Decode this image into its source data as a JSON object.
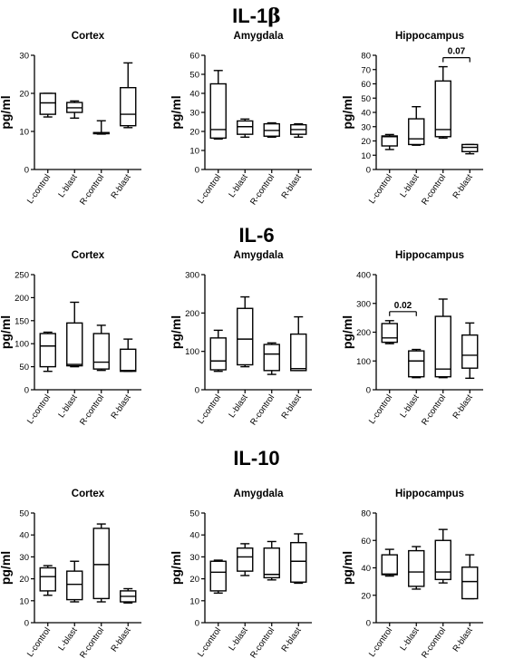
{
  "figure_sections": [
    {
      "title": "IL-1",
      "title_suffix": "β"
    },
    {
      "title": "IL-6",
      "title_suffix": ""
    },
    {
      "title": "IL-10",
      "title_suffix": ""
    }
  ],
  "chart_data": [
    {
      "type": "box",
      "section": 0,
      "title": "Cortex",
      "ylabel": "pg/ml",
      "categories": [
        "L-control",
        "L-blast",
        "R-control",
        "R-blast"
      ],
      "yticks": [
        0,
        10,
        20,
        30
      ],
      "ylim": [
        0,
        30
      ],
      "boxes": [
        {
          "min": 13.8,
          "q1": 14.5,
          "median": 17.5,
          "q3": 20.0,
          "max": 20.0
        },
        {
          "min": 13.5,
          "q1": 15.0,
          "median": 16.2,
          "q3": 17.6,
          "max": 18.0
        },
        {
          "min": 9.3,
          "q1": 9.4,
          "median": 9.5,
          "q3": 9.7,
          "max": 12.8
        },
        {
          "min": 11.0,
          "q1": 11.5,
          "median": 14.5,
          "q3": 21.5,
          "max": 28.0
        }
      ],
      "annotations": []
    },
    {
      "type": "box",
      "section": 0,
      "title": "Amygdala",
      "ylabel": "pg/ml",
      "categories": [
        "L-control",
        "L-blast",
        "R-control",
        "R-blast"
      ],
      "yticks": [
        0,
        10,
        20,
        30,
        40,
        50,
        60
      ],
      "ylim": [
        0,
        60
      ],
      "boxes": [
        {
          "min": 16.0,
          "q1": 16.5,
          "median": 21.0,
          "q3": 45.0,
          "max": 52.0
        },
        {
          "min": 17.0,
          "q1": 18.5,
          "median": 22.5,
          "q3": 25.5,
          "max": 26.5
        },
        {
          "min": 17.0,
          "q1": 17.5,
          "median": 20.5,
          "q3": 24.0,
          "max": 24.5
        },
        {
          "min": 17.0,
          "q1": 18.5,
          "median": 21.0,
          "q3": 23.5,
          "max": 24.0
        }
      ],
      "annotations": []
    },
    {
      "type": "box",
      "section": 0,
      "title": "Hippocampus",
      "ylabel": "pg/ml",
      "categories": [
        "L-control",
        "L-blast",
        "R-control",
        "R-blast"
      ],
      "yticks": [
        0,
        10,
        20,
        30,
        40,
        50,
        60,
        70,
        80
      ],
      "ylim": [
        0,
        80
      ],
      "boxes": [
        {
          "min": 14.0,
          "q1": 16.5,
          "median": 23.0,
          "q3": 23.5,
          "max": 24.5
        },
        {
          "min": 17.0,
          "q1": 17.5,
          "median": 21.5,
          "q3": 35.5,
          "max": 44.0
        },
        {
          "min": 22.0,
          "q1": 23.0,
          "median": 28.0,
          "q3": 62.0,
          "max": 72.0
        },
        {
          "min": 11.0,
          "q1": 12.5,
          "median": 15.5,
          "q3": 17.5,
          "max": 17.5
        }
      ],
      "annotations": [
        {
          "from": 2,
          "to": 3,
          "label": "0.07"
        }
      ]
    },
    {
      "type": "box",
      "section": 1,
      "title": "Cortex",
      "ylabel": "pg/ml",
      "categories": [
        "L-control",
        "L-blast",
        "R-control",
        "R-blast"
      ],
      "yticks": [
        0,
        50,
        100,
        150,
        200,
        250
      ],
      "ylim": [
        0,
        250
      ],
      "boxes": [
        {
          "min": 40,
          "q1": 50,
          "median": 95,
          "q3": 122,
          "max": 125
        },
        {
          "min": 50,
          "q1": 52,
          "median": 55,
          "q3": 145,
          "max": 190
        },
        {
          "min": 42,
          "q1": 45,
          "median": 60,
          "q3": 122,
          "max": 140
        },
        {
          "min": 40,
          "q1": 40,
          "median": 42,
          "q3": 88,
          "max": 110
        }
      ],
      "annotations": []
    },
    {
      "type": "box",
      "section": 1,
      "title": "Amygdala",
      "ylabel": "pg/ml",
      "categories": [
        "L-control",
        "L-blast",
        "R-control",
        "R-blast"
      ],
      "yticks": [
        0,
        100,
        200,
        300
      ],
      "ylim": [
        0,
        300
      ],
      "boxes": [
        {
          "min": 48,
          "q1": 52,
          "median": 75,
          "q3": 135,
          "max": 155
        },
        {
          "min": 60,
          "q1": 65,
          "median": 132,
          "q3": 212,
          "max": 242
        },
        {
          "min": 40,
          "q1": 50,
          "median": 93,
          "q3": 118,
          "max": 122
        },
        {
          "min": 50,
          "q1": 50,
          "median": 55,
          "q3": 145,
          "max": 190
        }
      ],
      "annotations": []
    },
    {
      "type": "box",
      "section": 1,
      "title": "Hippocampus",
      "ylabel": "pg/ml",
      "categories": [
        "L-control",
        "L-blast",
        "R-control",
        "R-blast"
      ],
      "yticks": [
        0,
        100,
        200,
        300,
        400
      ],
      "ylim": [
        0,
        400
      ],
      "boxes": [
        {
          "min": 160,
          "q1": 165,
          "median": 180,
          "q3": 230,
          "max": 240
        },
        {
          "min": 42,
          "q1": 45,
          "median": 100,
          "q3": 135,
          "max": 140
        },
        {
          "min": 42,
          "q1": 45,
          "median": 72,
          "q3": 255,
          "max": 315
        },
        {
          "min": 40,
          "q1": 75,
          "median": 120,
          "q3": 190,
          "max": 232
        }
      ],
      "annotations": [
        {
          "from": 0,
          "to": 1,
          "label": "0.02"
        }
      ]
    },
    {
      "type": "box",
      "section": 2,
      "title": "Cortex",
      "ylabel": "pg/ml",
      "categories": [
        "L-control",
        "L-blast",
        "R-control",
        "R-blast"
      ],
      "yticks": [
        0,
        10,
        20,
        30,
        40,
        50
      ],
      "ylim": [
        0,
        50
      ],
      "boxes": [
        {
          "min": 12.5,
          "q1": 14.5,
          "median": 21.0,
          "q3": 25.0,
          "max": 26.0
        },
        {
          "min": 9.5,
          "q1": 10.5,
          "median": 17.5,
          "q3": 23.5,
          "max": 28.0
        },
        {
          "min": 9.5,
          "q1": 11.0,
          "median": 26.5,
          "q3": 43.0,
          "max": 45.0
        },
        {
          "min": 9.0,
          "q1": 9.5,
          "median": 12.0,
          "q3": 14.5,
          "max": 15.5
        }
      ],
      "annotations": []
    },
    {
      "type": "box",
      "section": 2,
      "title": "Amygdala",
      "ylabel": "pg/ml",
      "categories": [
        "L-control",
        "L-blast",
        "R-control",
        "R-blast"
      ],
      "yticks": [
        0,
        10,
        20,
        30,
        40,
        50
      ],
      "ylim": [
        0,
        50
      ],
      "boxes": [
        {
          "min": 13.5,
          "q1": 14.5,
          "median": 23.0,
          "q3": 28.0,
          "max": 28.5
        },
        {
          "min": 21.5,
          "q1": 23.5,
          "median": 30.0,
          "q3": 34.0,
          "max": 36.0
        },
        {
          "min": 19.5,
          "q1": 20.5,
          "median": 22.0,
          "q3": 34.0,
          "max": 37.0
        },
        {
          "min": 18.0,
          "q1": 18.5,
          "median": 28.0,
          "q3": 36.5,
          "max": 40.5
        }
      ],
      "annotations": []
    },
    {
      "type": "box",
      "section": 2,
      "title": "Hippocampus",
      "ylabel": "pg/ml",
      "categories": [
        "L-control",
        "L-blast",
        "R-control",
        "R-blast"
      ],
      "yticks": [
        0,
        20,
        40,
        60,
        80
      ],
      "ylim": [
        0,
        80
      ],
      "boxes": [
        {
          "min": 34.0,
          "q1": 35.0,
          "median": 35.5,
          "q3": 49.5,
          "max": 53.5
        },
        {
          "min": 24.5,
          "q1": 26.5,
          "median": 37.0,
          "q3": 52.5,
          "max": 55.5
        },
        {
          "min": 29.0,
          "q1": 31.5,
          "median": 37.0,
          "q3": 60.0,
          "max": 68.0
        },
        {
          "min": 17.5,
          "q1": 17.5,
          "median": 30.0,
          "q3": 40.5,
          "max": 49.5
        }
      ],
      "annotations": []
    }
  ]
}
